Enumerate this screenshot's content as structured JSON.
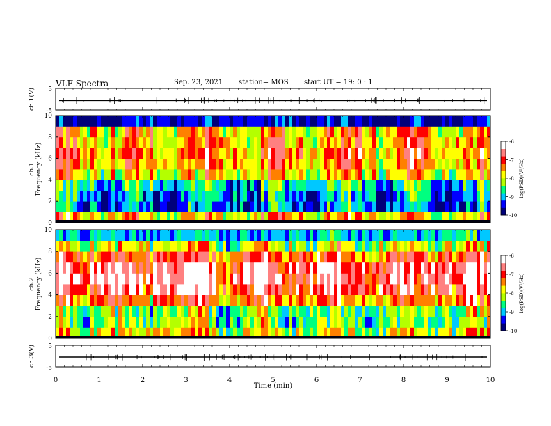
{
  "header": {
    "title": "VLF Spectra",
    "date": "Sep. 23, 2021",
    "station": "station= MOS",
    "start": "start  UT =   19: 0  : 1"
  },
  "colors": {
    "colormap": [
      "#00007a",
      "#0000ff",
      "#00c8ff",
      "#00ff80",
      "#b4ff00",
      "#ffff00",
      "#ff8000",
      "#ff0000",
      "#ff8080",
      "#ffffff"
    ]
  },
  "chart_data": [
    {
      "type": "line",
      "panel": "ch1-waveform",
      "ylabel": "ch.1(V)",
      "ylim": [
        -5,
        5
      ],
      "yticks": [
        "5",
        "-5"
      ],
      "xlim": [
        0,
        10
      ],
      "series": [
        {
          "values": [
            -0.6,
            -0.6,
            -0.6,
            -0.6,
            -0.6,
            -0.6,
            -0.6,
            -0.6,
            -0.6,
            -0.6
          ]
        }
      ]
    },
    {
      "type": "heatmap",
      "panel": "ch1-spectrogram",
      "ylabel": "ch.1\nFrequency (kHz)",
      "ylim": [
        0,
        10
      ],
      "yticks": [
        "0",
        "2",
        "4",
        "6",
        "8",
        "10"
      ],
      "xlim": [
        0,
        10
      ],
      "colorbar": {
        "label": "log(PSD)(V²/Hz)",
        "ticks": [
          "-6",
          "-7",
          "-8",
          "-9",
          "-10"
        ],
        "range": [
          -10,
          -6
        ]
      },
      "freq_kHz": [
        0.5,
        1.5,
        2.5,
        3.5,
        4.5,
        5.5,
        6.5,
        7.5,
        8.5,
        9.5
      ],
      "log_psd_typical": [
        -7.6,
        -9.2,
        -9.1,
        -8.7,
        -7.8,
        -7.4,
        -7.3,
        -7.5,
        -7.6,
        -9.6
      ]
    },
    {
      "type": "heatmap",
      "panel": "ch2-spectrogram",
      "ylabel": "ch.2\nFrequency (kHz)",
      "ylim": [
        0,
        10
      ],
      "yticks": [
        "0",
        "2",
        "4",
        "6",
        "8",
        "10"
      ],
      "xlim": [
        0,
        10
      ],
      "colorbar": {
        "label": "log(PSD)(V²/Hz)",
        "ticks": [
          "-6",
          "-7",
          "-8",
          "-9",
          "-10"
        ],
        "range": [
          -10,
          -6
        ]
      },
      "freq_kHz": [
        0.5,
        1.5,
        2.5,
        3.5,
        4.5,
        5.5,
        6.5,
        7.5,
        8.5,
        9.5
      ],
      "log_psd_typical": [
        -7.9,
        -8.4,
        -8.3,
        -7.3,
        -6.7,
        -6.5,
        -6.6,
        -7.1,
        -8.0,
        -9.0
      ]
    },
    {
      "type": "line",
      "panel": "ch3-waveform",
      "ylabel": "ch.3(V)",
      "ylim": [
        -5,
        5
      ],
      "yticks": [
        "5",
        "-5"
      ],
      "xlim": [
        0,
        10
      ],
      "xlabel": "Time  (min)",
      "xticks": [
        "0",
        "1",
        "2",
        "3",
        "4",
        "5",
        "6",
        "7",
        "8",
        "9",
        "10"
      ],
      "series": [
        {
          "values": [
            -0.5,
            -0.5,
            -0.5,
            -0.5,
            -0.5,
            -0.5,
            -0.5,
            -0.5,
            -0.5,
            -0.5
          ]
        }
      ]
    }
  ]
}
